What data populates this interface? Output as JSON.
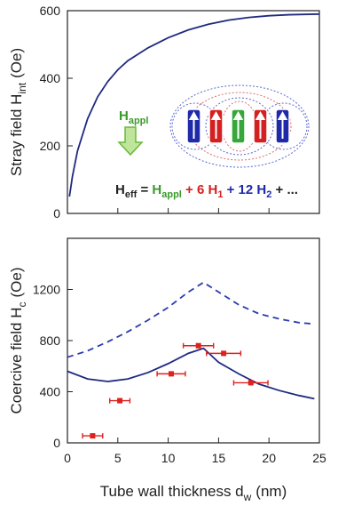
{
  "chart_data": [
    {
      "type": "line",
      "ylabel": {
        "text": "Stray field H",
        "sub": "int",
        "unit": "(Oe)"
      },
      "xlim": [
        0,
        25
      ],
      "xticks": [
        0,
        5,
        10,
        15,
        20,
        25
      ],
      "ylim": [
        0,
        600
      ],
      "yticks": [
        0,
        200,
        400,
        600
      ],
      "series": [
        {
          "color": "#1f2a80",
          "dash": false,
          "x": [
            0.2,
            0.5,
            1,
            2,
            3,
            4,
            5,
            6,
            8,
            10,
            12,
            14,
            16,
            18,
            20,
            22,
            25
          ],
          "values": [
            50,
            110,
            185,
            280,
            345,
            390,
            425,
            452,
            490,
            520,
            543,
            560,
            572,
            580,
            585,
            588,
            590
          ]
        }
      ],
      "annotation": {
        "applied": {
          "text": "H",
          "sub": "appl"
        },
        "equation": [
          "H",
          "eff",
          " = ",
          "H",
          "appl",
          " + 6 ",
          "H",
          "1",
          " + 12 ",
          "H",
          "2",
          " + ..."
        ]
      }
    },
    {
      "type": "line",
      "ylabel": {
        "text": "Coercive field H",
        "sub": "c",
        "unit": "(Oe)"
      },
      "xlabel": {
        "text": "Tube wall thickness d",
        "sub": "w",
        "unit": "(nm)"
      },
      "xlim": [
        0,
        25
      ],
      "xticks": [
        0,
        5,
        10,
        15,
        20,
        25
      ],
      "ylim": [
        0,
        1600
      ],
      "yticks": [
        0,
        400,
        800,
        1200
      ],
      "series": [
        {
          "color": "#2a3bb0",
          "dash": true,
          "x": [
            0,
            2,
            4,
            6,
            8,
            10,
            12,
            13.5,
            15,
            17,
            19,
            21,
            23,
            24.5
          ],
          "values": [
            670,
            720,
            790,
            870,
            960,
            1060,
            1180,
            1255,
            1180,
            1080,
            1010,
            970,
            940,
            930
          ]
        },
        {
          "color": "#1f2a80",
          "dash": false,
          "x": [
            0,
            2,
            4,
            6,
            8,
            10,
            12,
            13.5,
            15,
            17,
            19,
            21,
            23,
            24.5
          ],
          "values": [
            560,
            500,
            480,
            500,
            550,
            620,
            700,
            740,
            630,
            540,
            460,
            410,
            370,
            345
          ]
        }
      ],
      "points": {
        "color": "#e0201b",
        "x": [
          2.5,
          5.2,
          10.3,
          13,
          15.5,
          18.2
        ],
        "values": [
          55,
          330,
          540,
          760,
          700,
          470
        ],
        "xerr": [
          1,
          1,
          1.4,
          1.5,
          1.7,
          1.7
        ]
      }
    }
  ]
}
